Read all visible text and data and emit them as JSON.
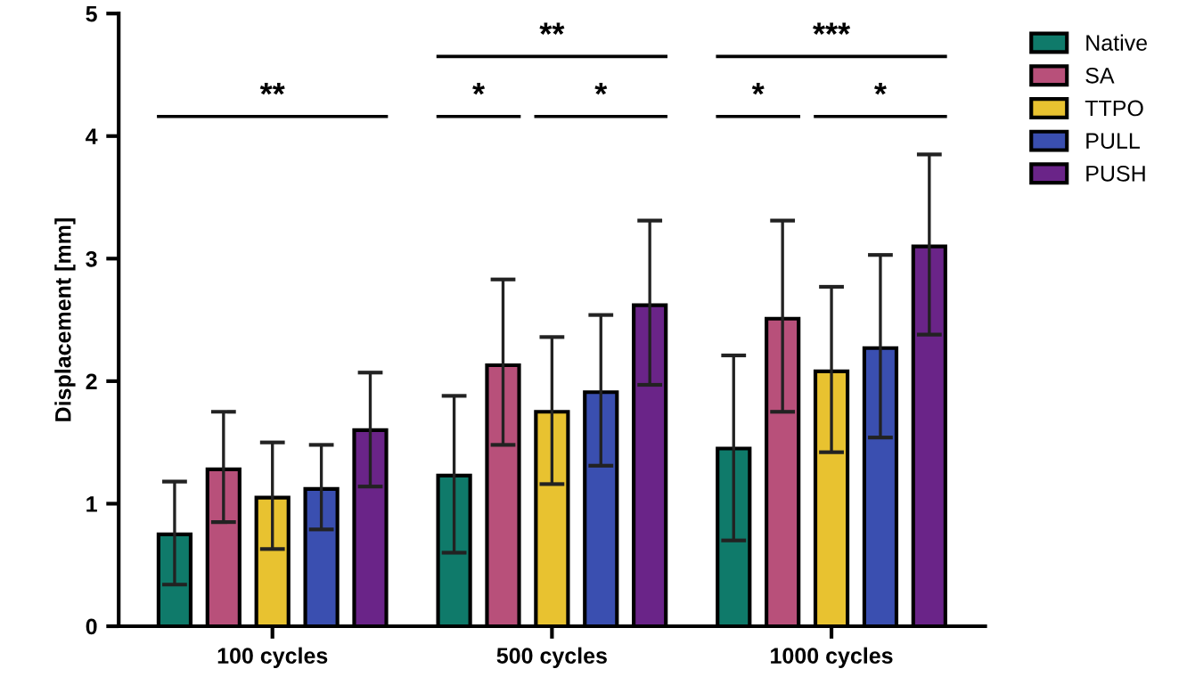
{
  "chart_data": {
    "type": "bar",
    "ylabel": "Displacement [mm]",
    "categories": [
      "100 cycles",
      "500 cycles",
      "1000 cycles"
    ],
    "series": [
      {
        "name": "Native",
        "color": "#0f7a6a",
        "values": [
          0.75,
          1.23,
          1.45
        ],
        "errors": [
          [
            0.34,
            1.18
          ],
          [
            0.6,
            1.88
          ],
          [
            0.7,
            2.21
          ]
        ]
      },
      {
        "name": "SA",
        "color": "#b8507a",
        "values": [
          1.28,
          2.13,
          2.51
        ],
        "errors": [
          [
            0.85,
            1.75
          ],
          [
            1.48,
            2.83
          ],
          [
            1.75,
            3.31
          ]
        ]
      },
      {
        "name": "TTPO",
        "color": "#e8c230",
        "values": [
          1.05,
          1.75,
          2.08
        ],
        "errors": [
          [
            0.63,
            1.5
          ],
          [
            1.16,
            2.36
          ],
          [
            1.42,
            2.77
          ]
        ]
      },
      {
        "name": "PULL",
        "color": "#3a4fb0",
        "values": [
          1.12,
          1.91,
          2.27
        ],
        "errors": [
          [
            0.79,
            1.48
          ],
          [
            1.31,
            2.54
          ],
          [
            1.54,
            3.03
          ]
        ]
      },
      {
        "name": "PUSH",
        "color": "#6a2488",
        "values": [
          1.6,
          2.62,
          3.1
        ],
        "errors": [
          [
            1.14,
            2.07
          ],
          [
            1.97,
            3.31
          ],
          [
            2.38,
            3.85
          ]
        ]
      }
    ],
    "ylim": [
      0,
      5
    ],
    "yticks": [
      0,
      1,
      2,
      3,
      4,
      5
    ],
    "grid": false,
    "legend": "top right",
    "annotations": [
      "**",
      "**",
      "*",
      "*",
      "***",
      "*",
      "*"
    ]
  }
}
